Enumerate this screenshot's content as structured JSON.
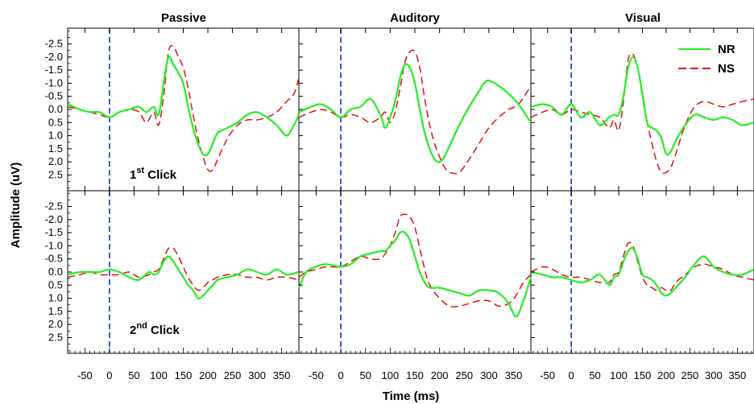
{
  "chart_data": {
    "type": "line",
    "columns": [
      "Passive",
      "Auditory",
      "Visual"
    ],
    "rows": [
      {
        "label_main": "1",
        "label_sup": "st",
        "label_tail": " Click"
      },
      {
        "label_main": "2",
        "label_sup": "nd",
        "label_tail": " Click"
      }
    ],
    "xlabel": "Time (ms)",
    "ylabel": "Amplitude (uV)",
    "xlim": [
      -85,
      385
    ],
    "ylim": [
      -3.1,
      3.1
    ],
    "y_inverted": true,
    "xticks": [
      -50,
      0,
      50,
      100,
      150,
      200,
      250,
      300,
      350
    ],
    "yticks": [
      -2.5,
      -2.0,
      -1.5,
      -1.0,
      -0.5,
      0.0,
      0.5,
      1.0,
      1.5,
      2.0,
      2.5
    ],
    "ytick_labels": [
      "-2.5",
      "-2.0",
      "-1.5",
      "-1.0",
      "-0.5",
      "0.0",
      "0.5",
      "1.0",
      "1.5",
      "2.0",
      "2.5"
    ],
    "stimulus_onset_x": 0,
    "legend": {
      "position": "top-right",
      "entries": [
        {
          "name": "NR",
          "color": "#22ee22",
          "dash": "solid"
        },
        {
          "name": "NS",
          "color": "#dd1111",
          "dash": "dashed"
        }
      ]
    },
    "colors": {
      "onset_line": "#1133cc",
      "nr": "#22ee22",
      "ns": "#dd1111"
    },
    "panels": [
      {
        "row": 0,
        "col": 0,
        "series": [
          {
            "name": "NR",
            "x": [
              -85,
              -60,
              -40,
              -20,
              0,
              20,
              40,
              60,
              75,
              90,
              100,
              110,
              120,
              130,
              140,
              150,
              160,
              170,
              180,
              190,
              200,
              210,
              220,
              240,
              260,
              280,
              300,
              320,
              340,
              360,
              375,
              385
            ],
            "y": [
              -0.2,
              0.0,
              0.1,
              0.1,
              0.3,
              0.1,
              0.0,
              -0.1,
              0.1,
              -0.1,
              0.2,
              -1.0,
              -2.0,
              -1.7,
              -1.4,
              -1.0,
              -0.1,
              0.7,
              1.3,
              1.7,
              1.7,
              1.3,
              0.9,
              0.7,
              0.5,
              0.2,
              0.1,
              0.3,
              0.6,
              1.0,
              0.6,
              0.2
            ]
          },
          {
            "name": "NS",
            "x": [
              -85,
              -60,
              -40,
              -20,
              0,
              20,
              40,
              60,
              75,
              90,
              100,
              110,
              120,
              130,
              140,
              150,
              160,
              170,
              180,
              190,
              200,
              210,
              220,
              240,
              260,
              280,
              300,
              320,
              340,
              360,
              375,
              385
            ],
            "y": [
              -0.1,
              0.0,
              0.1,
              0.2,
              0.3,
              0.1,
              0.0,
              0.1,
              0.5,
              0.1,
              0.6,
              -0.5,
              -2.2,
              -2.4,
              -2.0,
              -1.6,
              -0.8,
              0.2,
              1.1,
              1.8,
              2.3,
              2.3,
              1.9,
              1.1,
              0.6,
              0.4,
              0.4,
              0.3,
              0.1,
              -0.3,
              -0.6,
              -1.2
            ]
          }
        ]
      },
      {
        "row": 0,
        "col": 1,
        "series": [
          {
            "name": "NR",
            "x": [
              -85,
              -60,
              -40,
              -20,
              0,
              20,
              40,
              60,
              80,
              90,
              100,
              110,
              120,
              130,
              140,
              150,
              160,
              170,
              180,
              190,
              200,
              210,
              220,
              240,
              260,
              280,
              290,
              300,
              320,
              340,
              360,
              385
            ],
            "y": [
              0.1,
              -0.1,
              -0.2,
              0.0,
              0.3,
              0.0,
              -0.1,
              -0.4,
              0.2,
              0.7,
              0.3,
              -0.3,
              -1.2,
              -1.7,
              -1.6,
              -1.0,
              0.0,
              0.9,
              1.5,
              1.9,
              2.0,
              1.8,
              1.4,
              0.6,
              -0.1,
              -0.7,
              -1.0,
              -1.1,
              -0.9,
              -0.6,
              -0.2,
              0.5
            ]
          },
          {
            "name": "NS",
            "x": [
              -85,
              -60,
              -40,
              -20,
              0,
              20,
              40,
              60,
              80,
              90,
              100,
              110,
              120,
              130,
              140,
              150,
              160,
              170,
              180,
              190,
              200,
              210,
              220,
              240,
              260,
              280,
              300,
              320,
              340,
              360,
              385
            ],
            "y": [
              0.3,
              0.1,
              0.0,
              0.1,
              0.3,
              0.2,
              0.3,
              0.5,
              0.3,
              0.1,
              0.5,
              0.1,
              -0.8,
              -1.8,
              -2.2,
              -2.2,
              -1.6,
              -0.4,
              0.6,
              1.3,
              1.8,
              2.2,
              2.4,
              2.4,
              1.9,
              1.3,
              0.7,
              0.3,
              0.0,
              -0.2,
              -0.9
            ]
          }
        ]
      },
      {
        "row": 0,
        "col": 2,
        "series": [
          {
            "name": "NR",
            "x": [
              -85,
              -60,
              -40,
              -20,
              0,
              20,
              40,
              60,
              80,
              90,
              100,
              110,
              120,
              130,
              140,
              150,
              160,
              170,
              180,
              190,
              200,
              210,
              220,
              240,
              260,
              280,
              300,
              320,
              340,
              360,
              385
            ],
            "y": [
              -0.1,
              -0.2,
              -0.1,
              0.2,
              -0.2,
              0.3,
              0.1,
              0.6,
              0.3,
              0.2,
              0.2,
              -0.5,
              -1.6,
              -2.0,
              -1.6,
              -0.6,
              0.5,
              0.7,
              0.8,
              1.1,
              1.7,
              1.6,
              1.2,
              0.6,
              0.2,
              0.3,
              0.4,
              0.3,
              0.4,
              0.6,
              0.5
            ]
          },
          {
            "name": "NS",
            "x": [
              -85,
              -60,
              -40,
              -20,
              0,
              20,
              40,
              60,
              80,
              90,
              100,
              110,
              120,
              130,
              140,
              150,
              160,
              170,
              180,
              190,
              200,
              210,
              220,
              240,
              260,
              280,
              300,
              320,
              340,
              360,
              385
            ],
            "y": [
              0.3,
              0.1,
              0.0,
              0.2,
              0.0,
              0.1,
              0.2,
              0.3,
              0.7,
              0.4,
              0.8,
              -0.3,
              -1.9,
              -2.1,
              -1.6,
              -0.5,
              0.5,
              1.3,
              2.0,
              2.4,
              2.4,
              2.2,
              1.7,
              0.6,
              -0.1,
              -0.3,
              -0.2,
              -0.1,
              -0.2,
              -0.3,
              -0.4
            ]
          }
        ]
      },
      {
        "row": 1,
        "col": 0,
        "series": [
          {
            "name": "NR",
            "x": [
              -85,
              -60,
              -40,
              -20,
              0,
              20,
              40,
              60,
              80,
              90,
              100,
              110,
              120,
              130,
              140,
              150,
              160,
              170,
              180,
              190,
              200,
              210,
              220,
              240,
              260,
              280,
              300,
              320,
              340,
              360,
              385
            ],
            "y": [
              0.1,
              0.0,
              0.0,
              0.0,
              -0.1,
              0.0,
              0.2,
              0.3,
              0.0,
              0.1,
              0.0,
              -0.4,
              -0.6,
              -0.4,
              -0.1,
              0.2,
              0.5,
              0.7,
              1.0,
              0.9,
              0.7,
              0.5,
              0.3,
              0.2,
              0.1,
              -0.1,
              0.0,
              0.1,
              -0.1,
              0.1,
              0.0
            ]
          },
          {
            "name": "NS",
            "x": [
              -85,
              -60,
              -40,
              -20,
              0,
              20,
              40,
              60,
              80,
              90,
              100,
              110,
              120,
              130,
              140,
              150,
              160,
              170,
              180,
              190,
              200,
              210,
              220,
              240,
              260,
              280,
              300,
              320,
              340,
              360,
              385
            ],
            "y": [
              0.2,
              0.1,
              0.0,
              0.1,
              0.1,
              0.1,
              0.0,
              0.2,
              0.1,
              0.0,
              -0.1,
              -0.5,
              -0.9,
              -0.9,
              -0.6,
              -0.2,
              0.2,
              0.5,
              0.7,
              0.6,
              0.4,
              0.3,
              0.2,
              0.1,
              0.1,
              0.2,
              0.2,
              0.3,
              0.2,
              0.2,
              0.3
            ]
          }
        ]
      },
      {
        "row": 1,
        "col": 1,
        "series": [
          {
            "name": "NR",
            "x": [
              -85,
              -70,
              -50,
              -30,
              0,
              20,
              40,
              60,
              80,
              90,
              100,
              110,
              120,
              130,
              140,
              150,
              160,
              170,
              180,
              200,
              220,
              240,
              260,
              280,
              300,
              320,
              340,
              355,
              370,
              385
            ],
            "y": [
              0.6,
              0.0,
              -0.2,
              -0.3,
              -0.2,
              -0.3,
              -0.6,
              -0.7,
              -0.8,
              -0.8,
              -1.0,
              -1.2,
              -1.5,
              -1.5,
              -1.2,
              -0.6,
              0.0,
              0.4,
              0.6,
              0.6,
              0.7,
              0.8,
              0.9,
              0.7,
              0.7,
              0.8,
              1.2,
              1.7,
              1.1,
              0.2
            ]
          },
          {
            "name": "NS",
            "x": [
              -85,
              -70,
              -50,
              -30,
              0,
              20,
              40,
              60,
              80,
              90,
              100,
              110,
              120,
              130,
              140,
              150,
              160,
              170,
              180,
              200,
              220,
              240,
              260,
              280,
              300,
              320,
              340,
              355,
              370,
              385
            ],
            "y": [
              0.2,
              0.0,
              -0.1,
              -0.2,
              -0.2,
              -0.4,
              -0.6,
              -0.5,
              -0.5,
              -0.7,
              -1.0,
              -1.5,
              -2.1,
              -2.2,
              -2.1,
              -1.7,
              -0.9,
              -0.1,
              0.5,
              1.0,
              1.3,
              1.3,
              1.2,
              1.1,
              1.1,
              1.3,
              1.2,
              0.9,
              0.4,
              0.1
            ]
          }
        ]
      },
      {
        "row": 1,
        "col": 2,
        "series": [
          {
            "name": "NR",
            "x": [
              -85,
              -60,
              -40,
              -20,
              0,
              20,
              40,
              60,
              80,
              90,
              100,
              110,
              120,
              130,
              140,
              150,
              160,
              170,
              180,
              190,
              200,
              210,
              220,
              240,
              260,
              280,
              300,
              320,
              340,
              360,
              385
            ],
            "y": [
              0.0,
              0.1,
              0.2,
              0.2,
              0.3,
              0.4,
              0.3,
              0.1,
              0.5,
              0.2,
              0.1,
              -0.4,
              -0.8,
              -0.9,
              -0.5,
              0.1,
              0.2,
              0.3,
              0.5,
              0.8,
              0.9,
              0.8,
              0.6,
              0.2,
              -0.3,
              -0.6,
              -0.2,
              0.0,
              0.1,
              0.1,
              -0.1
            ]
          },
          {
            "name": "NS",
            "x": [
              -85,
              -60,
              -40,
              -20,
              0,
              20,
              40,
              60,
              80,
              90,
              100,
              110,
              120,
              130,
              140,
              150,
              160,
              170,
              180,
              190,
              200,
              210,
              220,
              240,
              260,
              280,
              300,
              320,
              340,
              360,
              385
            ],
            "y": [
              0.0,
              -0.2,
              -0.1,
              0.1,
              0.2,
              0.2,
              0.3,
              0.4,
              0.4,
              0.1,
              0.0,
              -0.6,
              -1.1,
              -1.0,
              -0.4,
              0.2,
              0.5,
              0.6,
              0.7,
              0.6,
              0.7,
              0.7,
              0.4,
              0.1,
              -0.2,
              -0.3,
              -0.2,
              -0.1,
              0.1,
              0.2,
              0.3
            ]
          }
        ]
      }
    ]
  }
}
